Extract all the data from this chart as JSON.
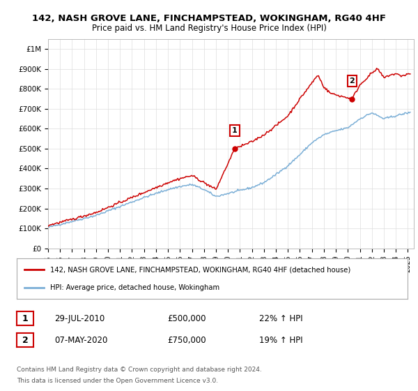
{
  "title": "142, NASH GROVE LANE, FINCHAMPSTEAD, WOKINGHAM, RG40 4HF",
  "subtitle": "Price paid vs. HM Land Registry's House Price Index (HPI)",
  "red_label": "142, NASH GROVE LANE, FINCHAMPSTEAD, WOKINGHAM, RG40 4HF (detached house)",
  "blue_label": "HPI: Average price, detached house, Wokingham",
  "annotation1_num": "1",
  "annotation1_date": "29-JUL-2010",
  "annotation1_price": "£500,000",
  "annotation1_hpi": "22% ↑ HPI",
  "annotation2_num": "2",
  "annotation2_date": "07-MAY-2020",
  "annotation2_price": "£750,000",
  "annotation2_hpi": "19% ↑ HPI",
  "footnote1": "Contains HM Land Registry data © Crown copyright and database right 2024.",
  "footnote2": "This data is licensed under the Open Government Licence v3.0.",
  "ylim": [
    0,
    1050000
  ],
  "yticks": [
    0,
    100000,
    200000,
    300000,
    400000,
    500000,
    600000,
    700000,
    800000,
    900000,
    1000000
  ],
  "ytick_labels": [
    "£0",
    "£100K",
    "£200K",
    "£300K",
    "£400K",
    "£500K",
    "£600K",
    "£700K",
    "£800K",
    "£900K",
    "£1M"
  ],
  "red_color": "#cc0000",
  "blue_color": "#7aaed6",
  "marker_color": "#cc0000",
  "grid_color": "#dddddd",
  "bg_color": "#ffffff",
  "sale1_x": 2010.57,
  "sale1_y": 500000,
  "sale2_x": 2020.35,
  "sale2_y": 750000,
  "xmin": 1995,
  "xmax": 2025.5,
  "hpi_keypoints_x": [
    1995,
    1997,
    1999,
    2001,
    2003,
    2004,
    2005,
    2006,
    2007,
    2008,
    2009,
    2010,
    2011,
    2012,
    2013,
    2014,
    2015,
    2016,
    2017,
    2018,
    2019,
    2020,
    2021,
    2022,
    2023,
    2024,
    2025
  ],
  "hpi_keypoints_y": [
    105000,
    135000,
    165000,
    210000,
    255000,
    275000,
    295000,
    310000,
    320000,
    295000,
    260000,
    275000,
    290000,
    305000,
    330000,
    370000,
    415000,
    470000,
    530000,
    570000,
    590000,
    605000,
    650000,
    680000,
    650000,
    665000,
    680000
  ],
  "red_keypoints_x": [
    1995,
    1997,
    1999,
    2001,
    2003,
    2004,
    2005,
    2006,
    2007,
    2008,
    2009,
    2010.57,
    2011,
    2012,
    2013,
    2014,
    2015,
    2016,
    2017,
    2017.5,
    2018,
    2018.5,
    2019,
    2020.35,
    2021,
    2022,
    2022.5,
    2023,
    2023.5,
    2024,
    2024.5,
    2025
  ],
  "red_keypoints_y": [
    115000,
    145000,
    180000,
    230000,
    280000,
    305000,
    330000,
    350000,
    365000,
    330000,
    295000,
    500000,
    510000,
    535000,
    570000,
    615000,
    665000,
    750000,
    830000,
    870000,
    810000,
    780000,
    770000,
    750000,
    820000,
    880000,
    900000,
    855000,
    870000,
    875000,
    865000,
    875000
  ]
}
